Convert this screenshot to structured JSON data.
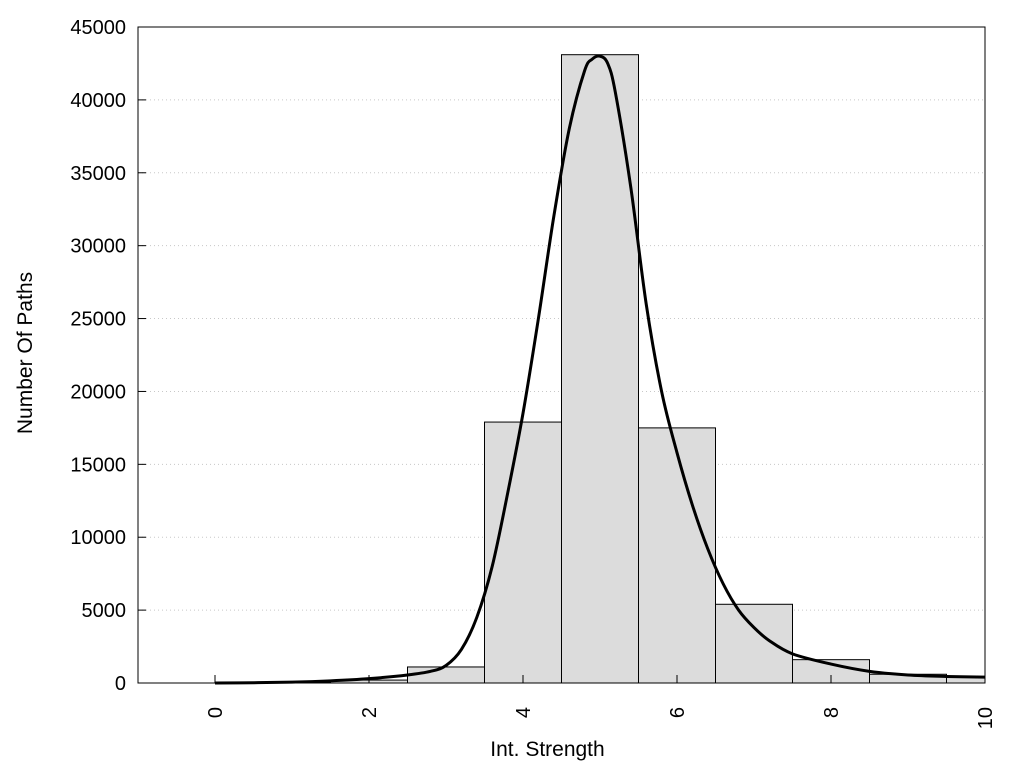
{
  "chart_data": {
    "type": "bar",
    "title": "",
    "xlabel": "Int. Strength",
    "ylabel": "Number Of Paths",
    "xlim": [
      -1,
      10
    ],
    "ylim": [
      0,
      45000
    ],
    "grid": "horizontal-dotted",
    "legend": "none",
    "x_ticks": [
      0,
      2,
      4,
      6,
      8,
      10
    ],
    "x_tick_labels": [
      "0",
      "2",
      "4",
      "6",
      "8",
      "10"
    ],
    "y_ticks": [
      0,
      5000,
      10000,
      15000,
      20000,
      25000,
      30000,
      35000,
      40000,
      45000
    ],
    "y_tick_labels": [
      "0",
      "5000",
      "10000",
      "15000",
      "20000",
      "25000",
      "30000",
      "35000",
      "40000",
      "45000"
    ],
    "bins": [
      {
        "x": 0,
        "value": 0
      },
      {
        "x": 1,
        "value": 50
      },
      {
        "x": 2,
        "value": 200
      },
      {
        "x": 3,
        "value": 1100
      },
      {
        "x": 4,
        "value": 17900
      },
      {
        "x": 5,
        "value": 43100
      },
      {
        "x": 6,
        "value": 17500
      },
      {
        "x": 7,
        "value": 5400
      },
      {
        "x": 8,
        "value": 1600
      },
      {
        "x": 9,
        "value": 600
      },
      {
        "x": 10,
        "value": 400
      }
    ],
    "bin_width": 1,
    "fit_curve": {
      "x": [
        0,
        0.5,
        1,
        1.5,
        2,
        2.5,
        2.8,
        3,
        3.2,
        3.4,
        3.6,
        3.8,
        4,
        4.2,
        4.4,
        4.6,
        4.8,
        4.9,
        5,
        5.1,
        5.2,
        5.4,
        5.6,
        5.8,
        6,
        6.2,
        6.4,
        6.6,
        6.8,
        7,
        7.2,
        7.5,
        8,
        8.5,
        9,
        9.5,
        10
      ],
      "y": [
        0,
        20,
        60,
        150,
        300,
        550,
        800,
        1200,
        2300,
        4500,
        8000,
        13000,
        18500,
        25000,
        32000,
        38000,
        42000,
        42800,
        43000,
        42500,
        40500,
        34000,
        26000,
        20000,
        15800,
        12200,
        9200,
        6800,
        5000,
        3800,
        2900,
        2000,
        1300,
        800,
        550,
        450,
        400
      ]
    },
    "colors": {
      "bar_fill": "#dcdcdc",
      "bar_stroke": "#000000",
      "curve": "#000000",
      "grid": "#c8c8c8"
    }
  }
}
